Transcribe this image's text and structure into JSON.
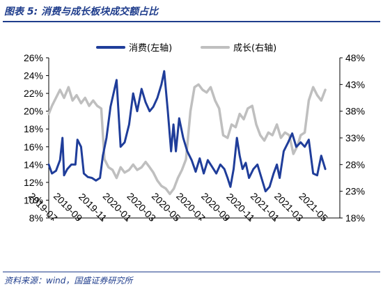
{
  "figure": {
    "title": "图表 5:  消费与成长板块成交额占比",
    "source": "资料来源：wind，国盛证券研究所"
  },
  "chart_data": {
    "type": "line",
    "title": "",
    "xlabel": "",
    "ylabel_left": "",
    "ylabel_right": "",
    "x_ticks": [
      "2019-07",
      "2019-09",
      "2019-11",
      "2020-01",
      "2020-03",
      "2020-05",
      "2020-07",
      "2020-09",
      "2020-11",
      "2021-01",
      "2021-03",
      "2021-05"
    ],
    "x_range": [
      "2019-06-20",
      "2021-06-10"
    ],
    "y_left": {
      "range": [
        8,
        26
      ],
      "ticks": [
        "8%",
        "10%",
        "12%",
        "14%",
        "16%",
        "18%",
        "20%",
        "22%",
        "24%",
        "26%"
      ]
    },
    "y_right": {
      "range": [
        18,
        48
      ],
      "ticks": [
        "18%",
        "23%",
        "28%",
        "33%",
        "38%",
        "43%",
        "48%"
      ]
    },
    "legend_position": "top",
    "grid": false,
    "series": [
      {
        "name": "消费(左轴)",
        "axis": "left",
        "color": "#1f3d9a",
        "points": [
          [
            "2019-06-20",
            14.0
          ],
          [
            "2019-06-28",
            13.0
          ],
          [
            "2019-07-08",
            13.3
          ],
          [
            "2019-07-18",
            14.5
          ],
          [
            "2019-07-24",
            17.0
          ],
          [
            "2019-07-28",
            12.8
          ],
          [
            "2019-08-05",
            13.5
          ],
          [
            "2019-08-15",
            14.0
          ],
          [
            "2019-08-25",
            14.0
          ],
          [
            "2019-08-30",
            16.8
          ],
          [
            "2019-09-08",
            16.0
          ],
          [
            "2019-09-15",
            13.0
          ],
          [
            "2019-09-25",
            12.6
          ],
          [
            "2019-10-05",
            12.5
          ],
          [
            "2019-10-15",
            12.2
          ],
          [
            "2019-10-25",
            12.5
          ],
          [
            "2019-11-01",
            15.0
          ],
          [
            "2019-11-10",
            17.0
          ],
          [
            "2019-11-20",
            20.5
          ],
          [
            "2019-12-05",
            23.5
          ],
          [
            "2019-12-15",
            16.0
          ],
          [
            "2019-12-25",
            16.5
          ],
          [
            "2020-01-05",
            18.5
          ],
          [
            "2020-01-15",
            22.0
          ],
          [
            "2020-01-25",
            20.0
          ],
          [
            "2020-02-05",
            22.5
          ],
          [
            "2020-02-15",
            21.0
          ],
          [
            "2020-02-25",
            20.0
          ],
          [
            "2020-03-05",
            20.5
          ],
          [
            "2020-03-15",
            21.5
          ],
          [
            "2020-03-25",
            23.0
          ],
          [
            "2020-04-01",
            24.5
          ],
          [
            "2020-04-10",
            20.0
          ],
          [
            "2020-04-18",
            15.5
          ],
          [
            "2020-04-24",
            18.5
          ],
          [
            "2020-04-30",
            15.5
          ],
          [
            "2020-05-08",
            19.2
          ],
          [
            "2020-05-18",
            17.0
          ],
          [
            "2020-05-28",
            15.5
          ],
          [
            "2020-06-08",
            14.5
          ],
          [
            "2020-06-18",
            13.2
          ],
          [
            "2020-06-28",
            14.7
          ],
          [
            "2020-07-08",
            13.0
          ],
          [
            "2020-07-18",
            14.5
          ],
          [
            "2020-07-28",
            13.8
          ],
          [
            "2020-08-08",
            13.0
          ],
          [
            "2020-08-18",
            14.0
          ],
          [
            "2020-08-28",
            13.5
          ],
          [
            "2020-09-05",
            12.5
          ],
          [
            "2020-09-12",
            11.5
          ],
          [
            "2020-09-20",
            13.5
          ],
          [
            "2020-09-28",
            17.0
          ],
          [
            "2020-10-05",
            15.0
          ],
          [
            "2020-10-12",
            13.5
          ],
          [
            "2020-10-20",
            14.2
          ],
          [
            "2020-10-28",
            12.5
          ],
          [
            "2020-11-08",
            13.5
          ],
          [
            "2020-11-18",
            14.0
          ],
          [
            "2020-11-28",
            12.5
          ],
          [
            "2020-12-08",
            11.0
          ],
          [
            "2020-12-18",
            11.5
          ],
          [
            "2020-12-28",
            13.0
          ],
          [
            "2021-01-05",
            14.0
          ],
          [
            "2021-01-12",
            12.5
          ],
          [
            "2021-01-22",
            15.5
          ],
          [
            "2021-02-02",
            16.5
          ],
          [
            "2021-02-12",
            17.5
          ],
          [
            "2021-02-22",
            16.0
          ],
          [
            "2021-03-05",
            16.5
          ],
          [
            "2021-03-15",
            16.0
          ],
          [
            "2021-03-25",
            16.8
          ],
          [
            "2021-04-05",
            13.0
          ],
          [
            "2021-04-15",
            12.8
          ],
          [
            "2021-04-25",
            15.0
          ],
          [
            "2021-05-05",
            13.5
          ]
        ]
      },
      {
        "name": "成长(右轴)",
        "axis": "right",
        "color": "#bfbfbf",
        "points": [
          [
            "2019-06-20",
            37.5
          ],
          [
            "2019-06-28",
            39.0
          ],
          [
            "2019-07-08",
            40.5
          ],
          [
            "2019-07-18",
            42.0
          ],
          [
            "2019-07-28",
            40.5
          ],
          [
            "2019-08-08",
            42.5
          ],
          [
            "2019-08-18",
            40.0
          ],
          [
            "2019-08-28",
            41.0
          ],
          [
            "2019-09-08",
            39.5
          ],
          [
            "2019-09-18",
            40.5
          ],
          [
            "2019-09-28",
            39.0
          ],
          [
            "2019-10-08",
            40.0
          ],
          [
            "2019-10-18",
            39.0
          ],
          [
            "2019-10-28",
            38.5
          ],
          [
            "2019-11-05",
            29.0
          ],
          [
            "2019-11-15",
            27.5
          ],
          [
            "2019-11-25",
            27.0
          ],
          [
            "2019-12-05",
            25.5
          ],
          [
            "2019-12-15",
            27.5
          ],
          [
            "2019-12-25",
            26.5
          ],
          [
            "2020-01-05",
            27.0
          ],
          [
            "2020-01-15",
            28.0
          ],
          [
            "2020-01-25",
            27.0
          ],
          [
            "2020-02-05",
            27.5
          ],
          [
            "2020-02-15",
            28.5
          ],
          [
            "2020-02-25",
            27.5
          ],
          [
            "2020-03-05",
            26.5
          ],
          [
            "2020-03-15",
            25.0
          ],
          [
            "2020-03-25",
            24.0
          ],
          [
            "2020-04-05",
            23.5
          ],
          [
            "2020-04-15",
            22.5
          ],
          [
            "2020-04-25",
            23.5
          ],
          [
            "2020-05-05",
            25.5
          ],
          [
            "2020-05-15",
            27.0
          ],
          [
            "2020-05-25",
            29.0
          ],
          [
            "2020-06-05",
            38.0
          ],
          [
            "2020-06-15",
            42.5
          ],
          [
            "2020-06-25",
            43.0
          ],
          [
            "2020-07-05",
            42.0
          ],
          [
            "2020-07-15",
            41.5
          ],
          [
            "2020-07-25",
            42.5
          ],
          [
            "2020-08-05",
            40.0
          ],
          [
            "2020-08-15",
            38.5
          ],
          [
            "2020-08-25",
            33.5
          ],
          [
            "2020-09-05",
            33.0
          ],
          [
            "2020-09-15",
            35.5
          ],
          [
            "2020-09-25",
            35.0
          ],
          [
            "2020-10-05",
            37.5
          ],
          [
            "2020-10-15",
            36.5
          ],
          [
            "2020-10-25",
            38.5
          ],
          [
            "2020-11-05",
            39.0
          ],
          [
            "2020-11-15",
            35.5
          ],
          [
            "2020-11-25",
            33.5
          ],
          [
            "2020-12-05",
            32.5
          ],
          [
            "2020-12-15",
            34.0
          ],
          [
            "2020-12-25",
            33.5
          ],
          [
            "2021-01-05",
            35.5
          ],
          [
            "2021-01-15",
            33.0
          ],
          [
            "2021-01-25",
            34.0
          ],
          [
            "2021-02-05",
            33.5
          ],
          [
            "2021-02-15",
            30.0
          ],
          [
            "2021-02-25",
            31.5
          ],
          [
            "2021-03-05",
            33.5
          ],
          [
            "2021-03-15",
            34.0
          ],
          [
            "2021-03-25",
            40.0
          ],
          [
            "2021-04-05",
            42.5
          ],
          [
            "2021-04-15",
            41.0
          ],
          [
            "2021-04-25",
            40.0
          ],
          [
            "2021-05-05",
            42.0
          ]
        ]
      }
    ]
  }
}
